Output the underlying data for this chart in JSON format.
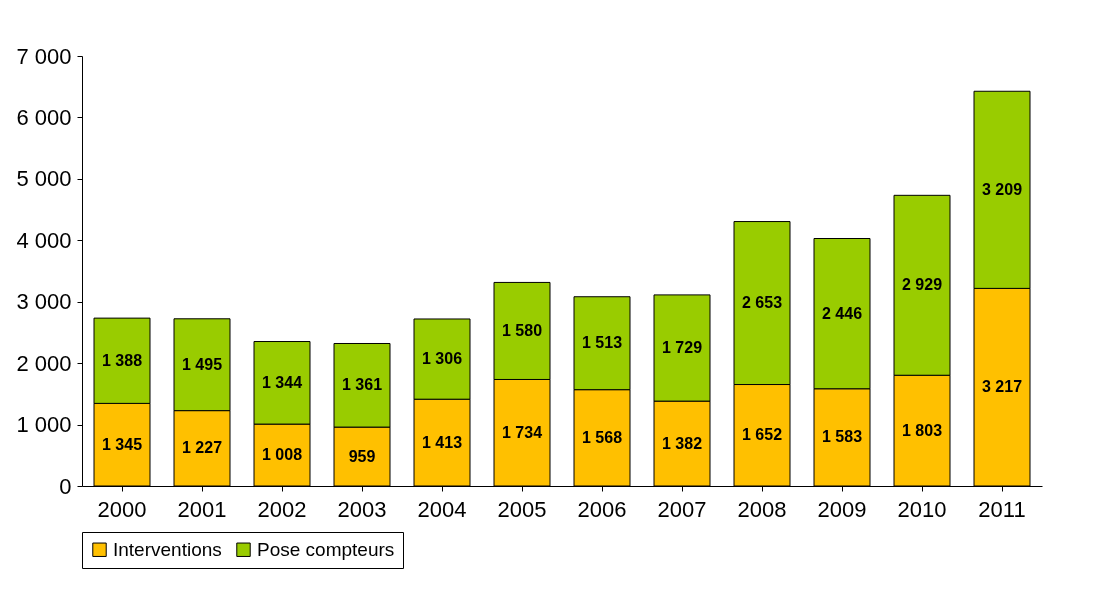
{
  "chart_data": {
    "type": "bar",
    "stacked": true,
    "categories": [
      "2000",
      "2001",
      "2002",
      "2003",
      "2004",
      "2005",
      "2006",
      "2007",
      "2008",
      "2009",
      "2010",
      "2011"
    ],
    "series": [
      {
        "name": "Interventions",
        "color": "#ffc000",
        "values": [
          1345,
          1227,
          1008,
          959,
          1413,
          1734,
          1568,
          1382,
          1652,
          1583,
          1803,
          3217
        ],
        "value_labels": [
          "1 345",
          "1 227",
          "1 008",
          "959",
          "1 413",
          "1 734",
          "1 568",
          "1 382",
          "1 652",
          "1 583",
          "1 803",
          "3 217"
        ]
      },
      {
        "name": "Pose compteurs",
        "color": "#99cc00",
        "values": [
          1388,
          1495,
          1344,
          1361,
          1306,
          1580,
          1513,
          1729,
          2653,
          2446,
          2929,
          3209
        ],
        "value_labels": [
          "1 388",
          "1 495",
          "1 344",
          "1 361",
          "1 306",
          "1 580",
          "1 513",
          "1 729",
          "2 653",
          "2 446",
          "2 929",
          "3 209"
        ]
      }
    ],
    "ylim": [
      0,
      7000
    ],
    "yticks": [
      0,
      {
        "value": 1000,
        "label": "1 000"
      },
      {
        "value": 2000,
        "label": "2 000"
      },
      {
        "value": 3000,
        "label": "3 000"
      },
      {
        "value": 4000,
        "label": "4 000"
      },
      {
        "value": 5000,
        "label": "5 000"
      },
      {
        "value": 6000,
        "label": "6 000"
      },
      {
        "value": 7000,
        "label": "7 000"
      }
    ],
    "grid": false,
    "legend": "bottom"
  }
}
